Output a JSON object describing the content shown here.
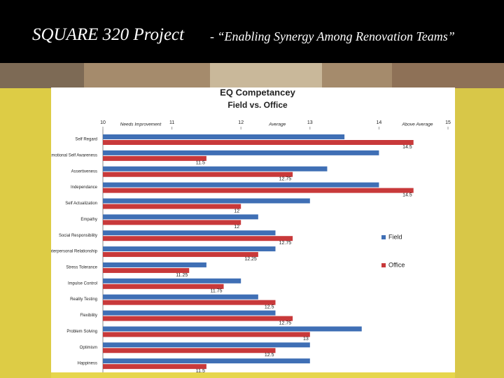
{
  "slide": {
    "title": "SQUARE 320 Project",
    "subtitle": "- “Enabling Synergy Among Renovation Teams”"
  },
  "chart_data": {
    "type": "hbar",
    "title": "EQ Competancey",
    "subtitle": "Field vs. Office",
    "annotations": [
      "Needs Improvement",
      "Average",
      "Above Average"
    ],
    "categories": [
      "Self Regard",
      "Emotional Self Awareness",
      "Assertiveness",
      "Independance",
      "Self Actualization",
      "Empathy",
      "Social Responsibility",
      "Interpersonal Relationship",
      "Stress Tolerance",
      "Impulse Control",
      "Reality Testing",
      "Flexibility",
      "Problem Solving",
      "Optimism",
      "Happiness"
    ],
    "series": [
      {
        "name": "Field",
        "color": "#3f6fb5",
        "values": [
          13.5,
          14,
          13.25,
          14,
          13,
          12.25,
          12.5,
          12.5,
          11.5,
          12,
          12.25,
          12.5,
          13.75,
          13,
          13
        ]
      },
      {
        "name": "Office",
        "color": "#c8393a",
        "values": [
          14.5,
          11.5,
          12.75,
          14.5,
          12,
          12,
          12.75,
          12.25,
          11.25,
          11.75,
          12.5,
          12.75,
          13,
          12.5,
          11.5
        ]
      }
    ],
    "data_labels_series": "Office",
    "xlim": [
      10,
      15
    ],
    "xticks": [
      10,
      11,
      12,
      13,
      14,
      15
    ],
    "grid": false,
    "legend": "right"
  }
}
